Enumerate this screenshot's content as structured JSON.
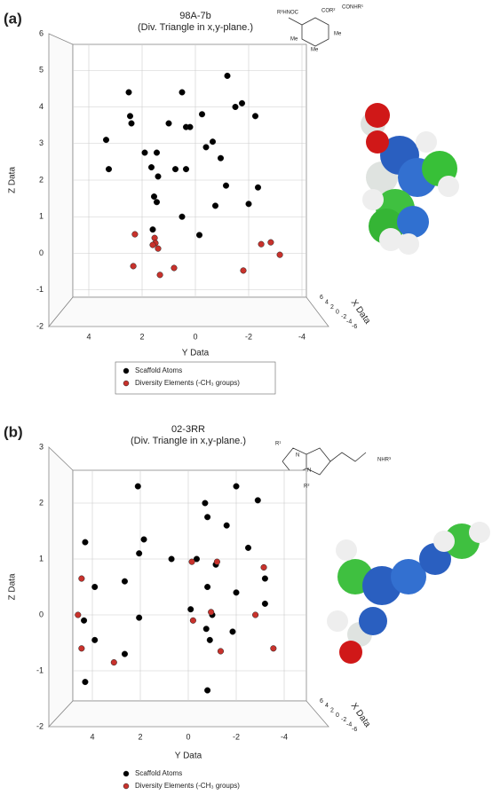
{
  "chart_data": [
    {
      "type": "scatter",
      "panel_label": "(a)",
      "title": "98A-7b",
      "subtitle": "(Div. Triangle in x,y-plane.)",
      "x_label": "Y Data",
      "y_label": "Z Data",
      "depth_label": "X Data",
      "xlim": [
        6,
        -6
      ],
      "xticks": [
        4,
        2,
        0,
        -2,
        -4
      ],
      "ylim": [
        -2,
        6
      ],
      "yticks": [
        -2,
        -1,
        0,
        1,
        2,
        3,
        4,
        5,
        6
      ],
      "depth_ticks": [
        6,
        4,
        2,
        0,
        -2,
        -4,
        -6
      ],
      "grid": true,
      "structure_labels": [
        "R²HNOC",
        "COR²",
        "CONHR¹",
        "Me",
        "Me",
        "Me"
      ],
      "series": [
        {
          "name": "Scaffold Atoms",
          "color": "#000000",
          "x": [
            2.5,
            0.5,
            -1.2,
            2.45,
            2.4,
            3.35,
            1.0,
            0.35,
            0.2,
            -0.25,
            -1.5,
            -1.75,
            -2.25,
            1.9,
            1.45,
            -0.4,
            -0.65,
            -0.95,
            1.65,
            0.75,
            0.35,
            3.25,
            1.4,
            -1.15,
            -2.35,
            1.55,
            1.45,
            0.5,
            -0.75,
            -2.0,
            1.6,
            -0.15
          ],
          "y": [
            4.4,
            4.4,
            4.85,
            3.75,
            3.55,
            3.1,
            3.55,
            3.45,
            3.45,
            3.8,
            4.0,
            4.1,
            3.75,
            2.75,
            2.75,
            2.9,
            3.05,
            2.6,
            2.35,
            2.3,
            2.3,
            2.3,
            2.1,
            1.85,
            1.8,
            1.55,
            1.4,
            1.0,
            1.3,
            1.35,
            0.65,
            0.5
          ]
        },
        {
          "name": "Diversity Elements (-CH₃ groups)",
          "color": "#c8322c",
          "x": [
            2.27,
            1.53,
            1.5,
            1.4,
            1.6,
            2.33,
            0.8,
            1.33,
            -1.8,
            -2.47,
            -2.83,
            -3.17
          ],
          "y": [
            0.52,
            0.42,
            0.28,
            0.13,
            0.23,
            -0.35,
            -0.4,
            -0.59,
            -0.47,
            0.25,
            0.3,
            -0.04
          ]
        }
      ]
    },
    {
      "type": "scatter",
      "panel_label": "(b)",
      "title": "02-3RR",
      "subtitle": "(Div. Triangle in x,y-plane.)",
      "x_label": "Y Data",
      "y_label": "Z Data",
      "depth_label": "X Data",
      "xlim": [
        6,
        -6
      ],
      "xticks": [
        4,
        2,
        0,
        -2,
        -4
      ],
      "ylim": [
        -2,
        3
      ],
      "yticks": [
        -2,
        -1,
        0,
        1,
        2,
        3
      ],
      "depth_ticks": [
        6,
        4,
        2,
        0,
        -2,
        -4,
        -6
      ],
      "grid": true,
      "structure_labels": [
        "R¹",
        "N",
        "N",
        "NHR³",
        "R²"
      ],
      "series": [
        {
          "name": "Scaffold Atoms",
          "color": "#000000",
          "x": [
            2.1,
            -0.7,
            -2.0,
            -2.9,
            -0.8,
            4.3,
            1.85,
            2.05,
            -1.6,
            -2.5,
            -0.35,
            0.7,
            -1.15,
            -3.2,
            2.65,
            -0.8,
            -2.0,
            3.9,
            -3.2,
            -0.1,
            -1.0,
            4.35,
            2.05,
            -0.75,
            -1.85,
            -0.9,
            3.9,
            2.65,
            4.3,
            -0.8
          ],
          "y": [
            2.3,
            2.0,
            2.3,
            2.05,
            1.75,
            1.3,
            1.35,
            1.1,
            1.6,
            1.2,
            1.0,
            1.0,
            0.9,
            0.65,
            0.6,
            0.5,
            0.4,
            0.5,
            0.2,
            0.1,
            0.0,
            -0.1,
            -0.05,
            -0.25,
            -0.3,
            -0.45,
            -0.45,
            -0.7,
            -1.2,
            -1.35
          ]
        },
        {
          "name": "Diversity Elements (-CH₃ groups)",
          "color": "#c8322c",
          "x": [
            4.45,
            -0.15,
            -1.2,
            -3.15,
            4.6,
            -0.2,
            -0.95,
            -2.8,
            4.45,
            3.1,
            -1.35,
            -3.55
          ],
          "y": [
            0.65,
            0.95,
            0.95,
            0.85,
            0.0,
            -0.1,
            0.05,
            0.0,
            -0.6,
            -0.85,
            -0.65,
            -0.6
          ]
        }
      ]
    }
  ]
}
